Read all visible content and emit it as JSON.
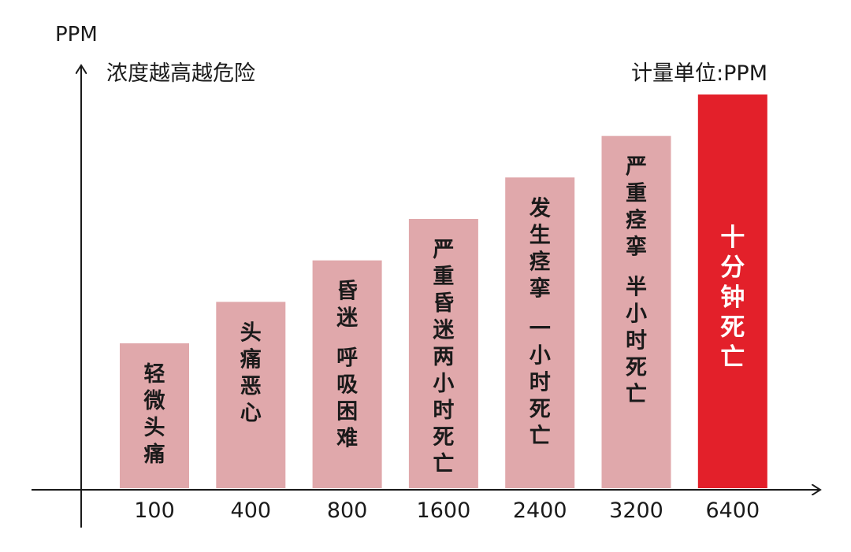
{
  "chart_data": {
    "type": "bar",
    "ylabel": "PPM",
    "subtitle": "浓度越高越危险",
    "unit_note": "计量单位:PPM",
    "categories": [
      "100",
      "400",
      "800",
      "1600",
      "2400",
      "3200",
      "6400"
    ],
    "values": [
      100,
      400,
      800,
      1600,
      2400,
      3200,
      6400
    ],
    "bar_labels": [
      "轻微头痛",
      "头痛恶心",
      "昏迷 呼吸困难",
      "严重昏迷两小时死亡",
      "发生痉挛 一小时死亡",
      "严重痉挛 半小时死亡",
      "十分钟死亡"
    ],
    "colors": {
      "bar": "#e0a8ab",
      "highlight": "#e3202a",
      "axis": "#1a1a1a"
    },
    "highlight_index": 6
  }
}
